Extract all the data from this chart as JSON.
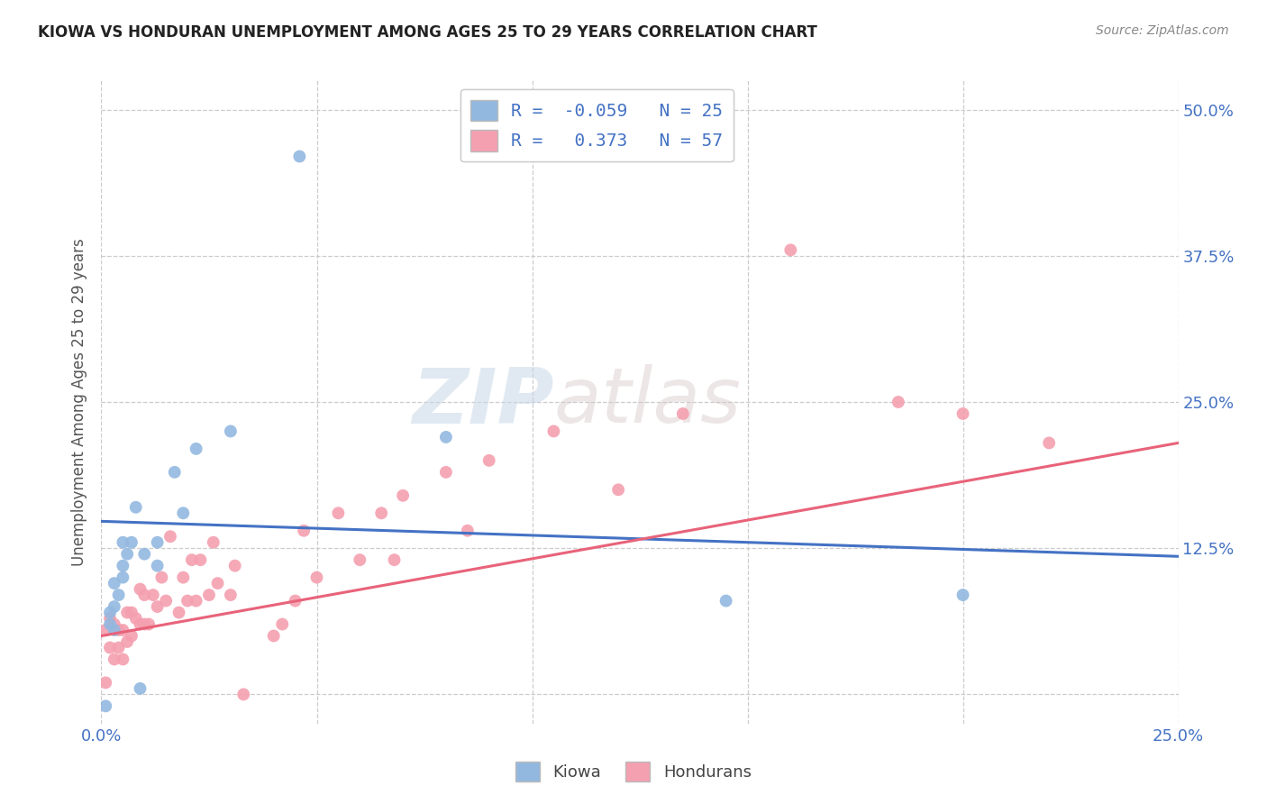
{
  "title": "KIOWA VS HONDURAN UNEMPLOYMENT AMONG AGES 25 TO 29 YEARS CORRELATION CHART",
  "source": "Source: ZipAtlas.com",
  "ylabel": "Unemployment Among Ages 25 to 29 years",
  "xlim": [
    0.0,
    0.25
  ],
  "ylim": [
    -0.025,
    0.525
  ],
  "xticks": [
    0.0,
    0.05,
    0.1,
    0.15,
    0.2,
    0.25
  ],
  "yticks": [
    0.0,
    0.125,
    0.25,
    0.375,
    0.5
  ],
  "xticklabels": [
    "0.0%",
    "",
    "",
    "",
    "",
    "25.0%"
  ],
  "yticklabels": [
    "",
    "12.5%",
    "25.0%",
    "37.5%",
    "50.0%"
  ],
  "kiowa_color": "#93b8e0",
  "honduran_color": "#f4a0b0",
  "kiowa_line_color": "#4472c4",
  "honduran_line_color": "#e8637a",
  "legend_R_color": "#4472c4",
  "kiowa_R": -0.059,
  "kiowa_N": 25,
  "honduran_R": 0.373,
  "honduran_N": 57,
  "kiowa_scatter_x": [
    0.001,
    0.002,
    0.002,
    0.003,
    0.003,
    0.003,
    0.004,
    0.005,
    0.005,
    0.005,
    0.006,
    0.007,
    0.008,
    0.009,
    0.01,
    0.013,
    0.013,
    0.017,
    0.019,
    0.022,
    0.03,
    0.046,
    0.08,
    0.145,
    0.2
  ],
  "kiowa_scatter_y": [
    -0.01,
    0.06,
    0.07,
    0.055,
    0.075,
    0.095,
    0.085,
    0.1,
    0.11,
    0.13,
    0.12,
    0.13,
    0.16,
    0.005,
    0.12,
    0.11,
    0.13,
    0.19,
    0.155,
    0.21,
    0.225,
    0.46,
    0.22,
    0.08,
    0.085
  ],
  "honduran_scatter_x": [
    0.001,
    0.001,
    0.002,
    0.002,
    0.003,
    0.003,
    0.004,
    0.004,
    0.005,
    0.005,
    0.006,
    0.006,
    0.007,
    0.007,
    0.008,
    0.009,
    0.009,
    0.01,
    0.01,
    0.011,
    0.012,
    0.013,
    0.014,
    0.015,
    0.016,
    0.018,
    0.019,
    0.02,
    0.021,
    0.022,
    0.023,
    0.025,
    0.026,
    0.027,
    0.03,
    0.031,
    0.033,
    0.04,
    0.042,
    0.045,
    0.047,
    0.05,
    0.055,
    0.06,
    0.065,
    0.068,
    0.07,
    0.08,
    0.085,
    0.09,
    0.105,
    0.12,
    0.135,
    0.16,
    0.185,
    0.2,
    0.22
  ],
  "honduran_scatter_y": [
    0.01,
    0.055,
    0.04,
    0.065,
    0.03,
    0.06,
    0.04,
    0.055,
    0.03,
    0.055,
    0.045,
    0.07,
    0.05,
    0.07,
    0.065,
    0.06,
    0.09,
    0.06,
    0.085,
    0.06,
    0.085,
    0.075,
    0.1,
    0.08,
    0.135,
    0.07,
    0.1,
    0.08,
    0.115,
    0.08,
    0.115,
    0.085,
    0.13,
    0.095,
    0.085,
    0.11,
    0.0,
    0.05,
    0.06,
    0.08,
    0.14,
    0.1,
    0.155,
    0.115,
    0.155,
    0.115,
    0.17,
    0.19,
    0.14,
    0.2,
    0.225,
    0.175,
    0.24,
    0.38,
    0.25,
    0.24,
    0.215
  ],
  "kiowa_line_x": [
    0.0,
    0.25
  ],
  "kiowa_line_y": [
    0.148,
    0.118
  ],
  "honduran_line_x": [
    0.0,
    0.25
  ],
  "honduran_line_y": [
    0.05,
    0.215
  ],
  "watermark_zip": "ZIP",
  "watermark_atlas": "atlas",
  "background_color": "#ffffff",
  "grid_color": "#cccccc",
  "tick_color": "#4472c4"
}
